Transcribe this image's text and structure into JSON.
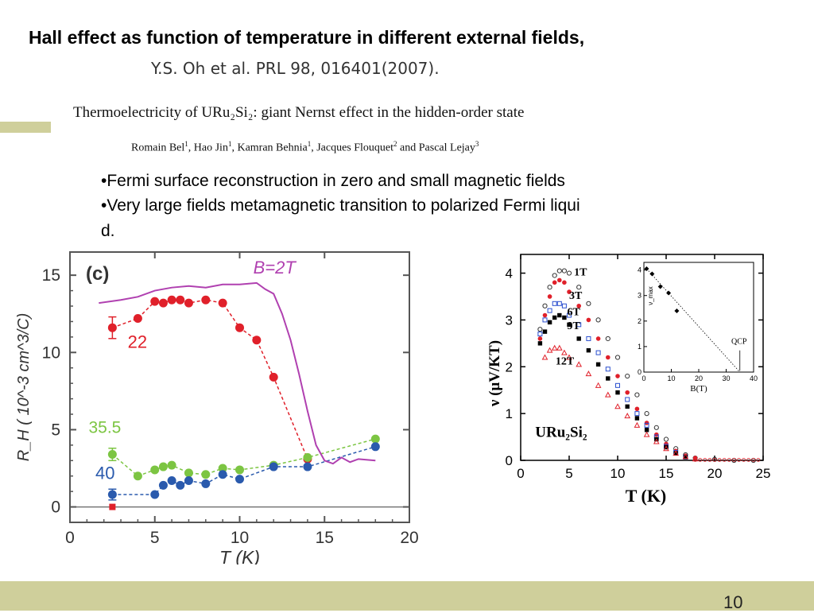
{
  "slide": {
    "title": "Hall effect as function of temperature in different external fields,",
    "citation": "Y.S. Oh et al. PRL 98, 016401(2007).",
    "paper_title": "Thermoelectricity of URu₂Si₂: giant Nernst effect in the hidden-order state",
    "authors": [
      {
        "name": "Romain Bel",
        "aff": "1"
      },
      {
        "name": "Hao Jin",
        "aff": "1"
      },
      {
        "name": "Kamran Behnia",
        "aff": "1"
      },
      {
        "name": "Jacques Flouquet",
        "aff": "2"
      },
      {
        "name": "Pascal Lejay",
        "aff": "3"
      }
    ],
    "authors_and": "and",
    "bullets": [
      "•Fermi surface reconstruction in zero and small  magnetic fields",
      "•Very large fields  metamagnetic transition to polarized  Fermi liqui",
      "d."
    ],
    "page_number": "10",
    "colors": {
      "accent": "#cfcf9b",
      "red": "#e0202a",
      "green": "#7cc542",
      "blue": "#2a5aad",
      "magenta": "#b040b0"
    }
  },
  "chart_data": [
    {
      "type": "scatter",
      "panel_label": "(c)",
      "xlabel": "T (K)",
      "ylabel": "R_H ( 10^-3 cm^3/C)",
      "xlim": [
        0,
        20
      ],
      "ylim": [
        -1,
        16.5
      ],
      "x_ticks": [
        0,
        5,
        10,
        15,
        20
      ],
      "y_ticks": [
        0,
        5,
        10,
        15
      ],
      "grid": false,
      "series": [
        {
          "name": "22",
          "color": "#e0202a",
          "style": "dashed-markers",
          "x": [
            2.5,
            4,
            5,
            5.5,
            6,
            6.5,
            7,
            8,
            9,
            10,
            11,
            12,
            14
          ],
          "y": [
            11.6,
            12.2,
            13.3,
            13.2,
            13.4,
            13.4,
            13.2,
            13.4,
            13.2,
            11.6,
            10.8,
            8.4,
            3.1
          ]
        },
        {
          "name": "35.5",
          "color": "#7cc542",
          "style": "dashed-markers",
          "x": [
            2.5,
            4,
            5,
            5.5,
            6,
            7,
            8,
            9,
            10,
            12,
            14,
            18
          ],
          "y": [
            3.4,
            2.0,
            2.4,
            2.6,
            2.7,
            2.2,
            2.1,
            2.5,
            2.4,
            2.7,
            3.2,
            4.4
          ]
        },
        {
          "name": "40",
          "color": "#2a5aad",
          "style": "dashed-markers",
          "x": [
            2.5,
            5,
            5.5,
            6,
            6.5,
            7,
            8,
            9,
            10,
            12,
            14,
            18
          ],
          "y": [
            0.8,
            0.8,
            1.4,
            1.7,
            1.4,
            1.7,
            1.5,
            2.1,
            1.8,
            2.6,
            2.6,
            3.9
          ]
        },
        {
          "name": "B=2T",
          "color": "#b040b0",
          "style": "line",
          "x": [
            1.7,
            3,
            4,
            5,
            6,
            7,
            8,
            9,
            10,
            11,
            11.5,
            12,
            12.5,
            13,
            13.5,
            14,
            14.5,
            15,
            15.5,
            16,
            16.5,
            17,
            18
          ],
          "y": [
            13.2,
            13.4,
            13.6,
            14.0,
            14.2,
            14.3,
            14.2,
            14.4,
            14.4,
            14.5,
            14.1,
            13.8,
            12.5,
            10.8,
            8.6,
            6.2,
            4.0,
            3.0,
            2.8,
            3.2,
            2.9,
            3.1,
            3.0
          ]
        }
      ],
      "annotations": [
        {
          "text": "0"
        }
      ]
    },
    {
      "type": "scatter",
      "title": "",
      "xlabel": "T (K)",
      "ylabel": "ν (μV/KT)",
      "xlim": [
        0,
        25
      ],
      "ylim": [
        0,
        4.4
      ],
      "x_ticks": [
        0,
        5,
        10,
        15,
        20,
        25
      ],
      "y_ticks": [
        0,
        1,
        2,
        3,
        4
      ],
      "material_label": "URu₂Si₂",
      "series": [
        {
          "name": "1T",
          "color": "#333333",
          "marker": "open-circle",
          "x": [
            2.0,
            2.5,
            3.0,
            3.5,
            4.0,
            4.5,
            5.0,
            6,
            7,
            8,
            9,
            10,
            11,
            12,
            13,
            14,
            15,
            16,
            17,
            18,
            20,
            22,
            24
          ],
          "y": [
            2.8,
            3.3,
            3.7,
            3.95,
            4.05,
            4.05,
            4.0,
            3.7,
            3.35,
            3.0,
            2.6,
            2.2,
            1.8,
            1.4,
            1.0,
            0.7,
            0.45,
            0.25,
            0.12,
            0.05,
            0.02,
            0.0,
            0.0
          ]
        },
        {
          "name": "3T",
          "color": "#e0202a",
          "marker": "filled-circle",
          "x": [
            2.0,
            2.5,
            3.0,
            3.5,
            4.0,
            4.5,
            5.0,
            6,
            7,
            8,
            9,
            10,
            11,
            12,
            13,
            14,
            15,
            16,
            17,
            18
          ],
          "y": [
            2.6,
            3.1,
            3.5,
            3.8,
            3.85,
            3.8,
            3.6,
            3.3,
            3.0,
            2.6,
            2.2,
            1.8,
            1.45,
            1.1,
            0.8,
            0.55,
            0.35,
            0.2,
            0.1,
            0.05
          ]
        },
        {
          "name": "6T",
          "color": "#2a4fcf",
          "marker": "open-square",
          "x": [
            2.0,
            2.5,
            3.0,
            3.5,
            4.0,
            4.5,
            5.0,
            6,
            7,
            8,
            9,
            10,
            11,
            12,
            13,
            14,
            15,
            16,
            17
          ],
          "y": [
            2.7,
            3.0,
            3.2,
            3.35,
            3.35,
            3.3,
            3.1,
            2.9,
            2.6,
            2.3,
            1.95,
            1.6,
            1.3,
            1.0,
            0.75,
            0.5,
            0.3,
            0.17,
            0.07
          ]
        },
        {
          "name": "9T",
          "color": "#000000",
          "marker": "filled-square",
          "x": [
            2.0,
            2.5,
            3.0,
            3.5,
            4.0,
            4.5,
            5.0,
            6,
            7,
            8,
            9,
            10,
            11,
            12,
            13,
            14,
            15,
            16,
            17
          ],
          "y": [
            2.5,
            2.75,
            2.95,
            3.05,
            3.1,
            3.05,
            2.9,
            2.6,
            2.35,
            2.05,
            1.75,
            1.45,
            1.15,
            0.9,
            0.65,
            0.45,
            0.28,
            0.15,
            0.07
          ]
        },
        {
          "name": "12T",
          "color": "#e0202a",
          "marker": "open-triangle",
          "x": [
            2.5,
            3.0,
            3.5,
            4.0,
            4.5,
            5.0,
            6,
            7,
            8,
            9,
            10,
            11,
            12,
            13,
            14,
            15,
            16,
            17,
            18
          ],
          "y": [
            2.2,
            2.35,
            2.4,
            2.4,
            2.3,
            2.2,
            2.05,
            1.85,
            1.6,
            1.4,
            1.15,
            0.95,
            0.75,
            0.55,
            0.4,
            0.25,
            0.15,
            0.08,
            0.03
          ]
        }
      ],
      "inset": {
        "xlabel": "B(T)",
        "ylabel": "ν_max",
        "xlim": [
          0,
          40
        ],
        "ylim": [
          0,
          4.3
        ],
        "x_ticks": [
          0,
          10,
          20,
          30,
          40
        ],
        "y_ticks": [
          0,
          1,
          2,
          3,
          4
        ],
        "points": {
          "x": [
            1,
            3,
            6,
            9,
            12
          ],
          "y": [
            4.05,
            3.85,
            3.35,
            3.1,
            2.4
          ]
        },
        "fit_line": {
          "x": [
            1,
            35
          ],
          "y": [
            4.05,
            0
          ]
        },
        "annotation": "QCP",
        "annotation_x": 35
      }
    }
  ]
}
